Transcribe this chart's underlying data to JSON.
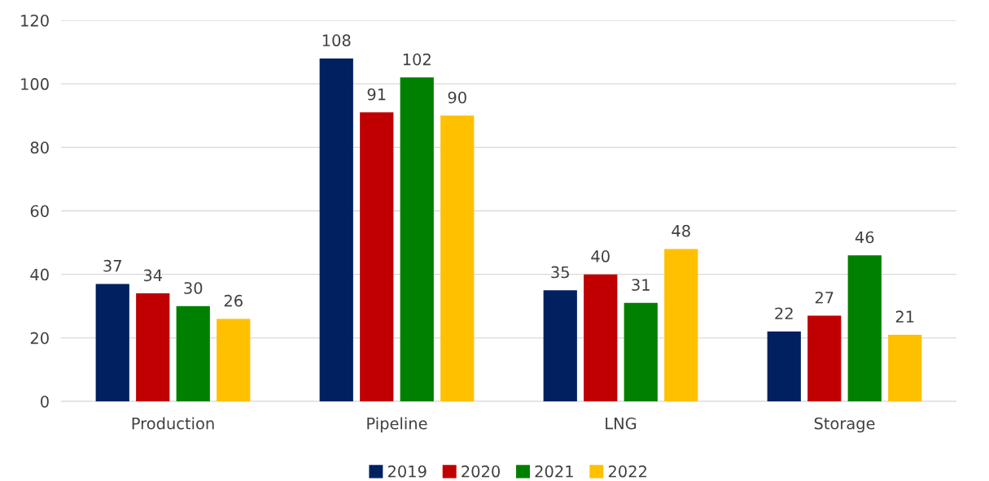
{
  "chart_data": {
    "type": "bar",
    "categories": [
      "Production",
      "Pipeline",
      "LNG",
      "Storage"
    ],
    "series": [
      {
        "name": "2019",
        "color": "#002060",
        "values": [
          37,
          108,
          35,
          22
        ]
      },
      {
        "name": "2020",
        "color": "#c00000",
        "values": [
          34,
          91,
          40,
          27
        ]
      },
      {
        "name": "2021",
        "color": "#008000",
        "values": [
          30,
          102,
          31,
          46
        ]
      },
      {
        "name": "2022",
        "color": "#ffc000",
        "values": [
          26,
          90,
          48,
          21
        ]
      }
    ],
    "ylim": [
      0,
      120
    ],
    "yticks": [
      0,
      20,
      40,
      60,
      80,
      100,
      120
    ],
    "grid": "y",
    "legend": "bottom",
    "data_labels": true
  }
}
